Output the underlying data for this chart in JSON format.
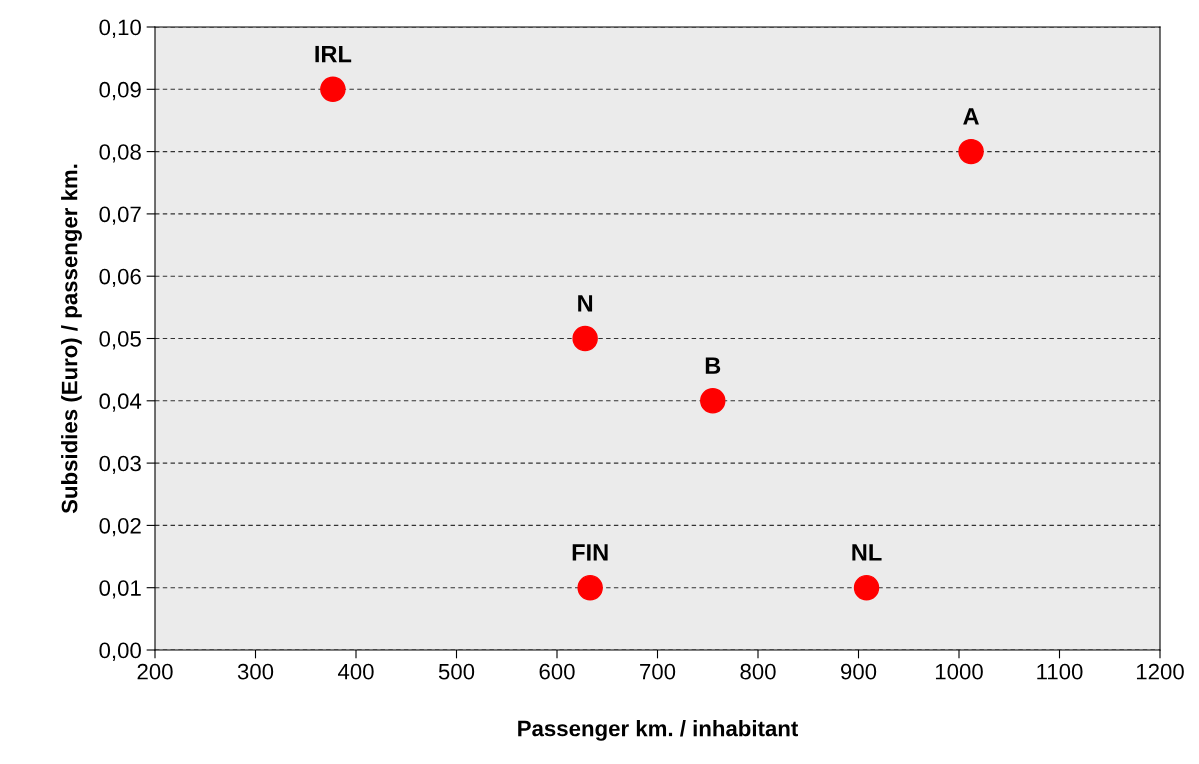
{
  "chart_data": {
    "type": "scatter",
    "xlabel": "Passenger km. / inhabitant",
    "ylabel": "Subsidies (Euro) / passenger km.",
    "x": [
      377,
      1012,
      628,
      755,
      633,
      908
    ],
    "series": [
      {
        "color": "#ff0000",
        "values": [
          0.09,
          0.08,
          0.05,
          0.04,
          0.01,
          0.01
        ]
      }
    ],
    "annotations": [
      {
        "text": "IRL",
        "x": 377,
        "y": 0.09
      },
      {
        "text": "A",
        "x": 1012,
        "y": 0.08
      },
      {
        "text": "N",
        "x": 628,
        "y": 0.05
      },
      {
        "text": "B",
        "x": 755,
        "y": 0.04
      },
      {
        "text": "FIN",
        "x": 633,
        "y": 0.01
      },
      {
        "text": "NL",
        "x": 908,
        "y": 0.01
      }
    ],
    "xlim": [
      200,
      1200
    ],
    "xticks": [
      200,
      300,
      400,
      500,
      600,
      700,
      800,
      900,
      1000,
      1100,
      1200
    ],
    "ylim": [
      0,
      0.1
    ],
    "yticks": [
      {
        "value": 0,
        "label": "0,00"
      },
      {
        "value": 0.01,
        "label": "0,01"
      },
      {
        "value": 0.02,
        "label": "0,02"
      },
      {
        "value": 0.03,
        "label": "0,03"
      },
      {
        "value": 0.04,
        "label": "0,04"
      },
      {
        "value": 0.05,
        "label": "0,05"
      },
      {
        "value": 0.06,
        "label": "0,06"
      },
      {
        "value": 0.07,
        "label": "0,07"
      },
      {
        "value": 0.08,
        "label": "0,08"
      },
      {
        "value": 0.09,
        "label": "0,09"
      },
      {
        "value": 0.1,
        "label": "0,10"
      }
    ],
    "grid": "y",
    "marker": "circle",
    "legend": false
  }
}
